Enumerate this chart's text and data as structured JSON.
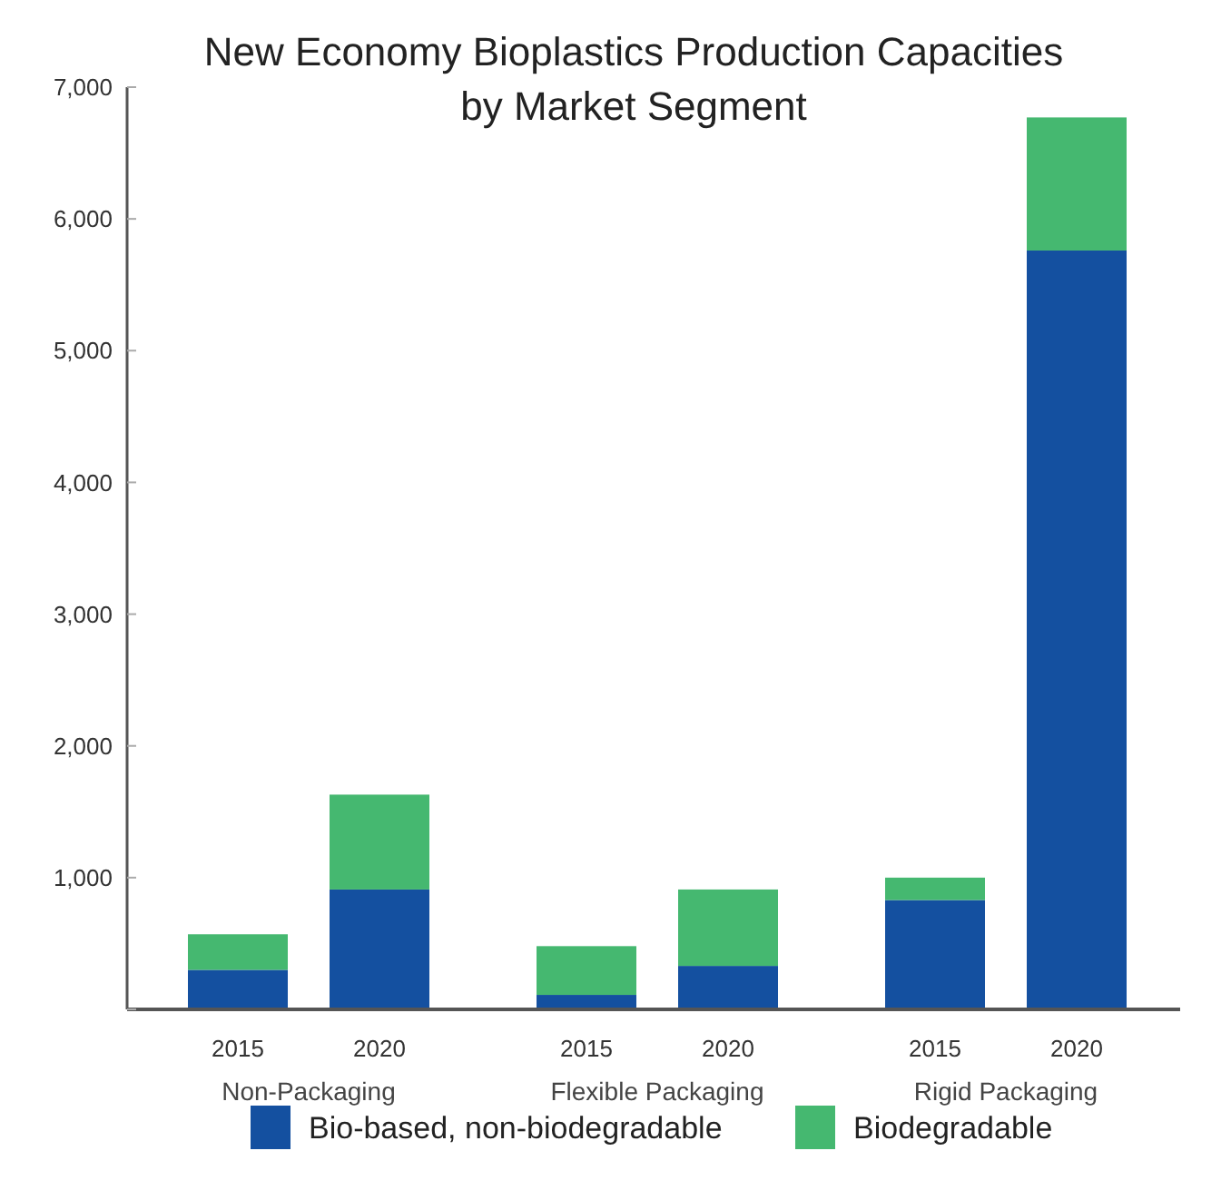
{
  "chart_data": {
    "type": "bar",
    "title": "New Economy Bioplastics Production Capacities by Market Segment",
    "categories": [
      "2015",
      "2020",
      "2015",
      "2020",
      "2015",
      "2020"
    ],
    "series": [
      {
        "name": "Bio-based, non-biodegradable",
        "color": "#1450a0",
        "values": [
          300,
          910,
          110,
          330,
          830,
          5760
        ]
      },
      {
        "name": "Biodegradable",
        "color": "#45b870",
        "values": [
          270,
          720,
          370,
          580,
          170,
          1010
        ]
      }
    ],
    "stacked": true,
    "ylim": [
      0,
      7000
    ],
    "yticks": [
      {
        "value": 0,
        "label": null
      },
      {
        "value": 1000,
        "label": "1,000"
      },
      {
        "value": 2000,
        "label": "2,000"
      },
      {
        "value": 3000,
        "label": "3,000"
      },
      {
        "value": 4000,
        "label": "4,000"
      },
      {
        "value": 5000,
        "label": "5,000"
      },
      {
        "value": 6000,
        "label": "6,000"
      },
      {
        "value": 7000,
        "label": "7,000"
      }
    ],
    "annotations": [
      "Non-Packaging",
      "Flexible Packaging",
      "Rigid Packaging"
    ],
    "grid": false,
    "legend": "bottom"
  }
}
